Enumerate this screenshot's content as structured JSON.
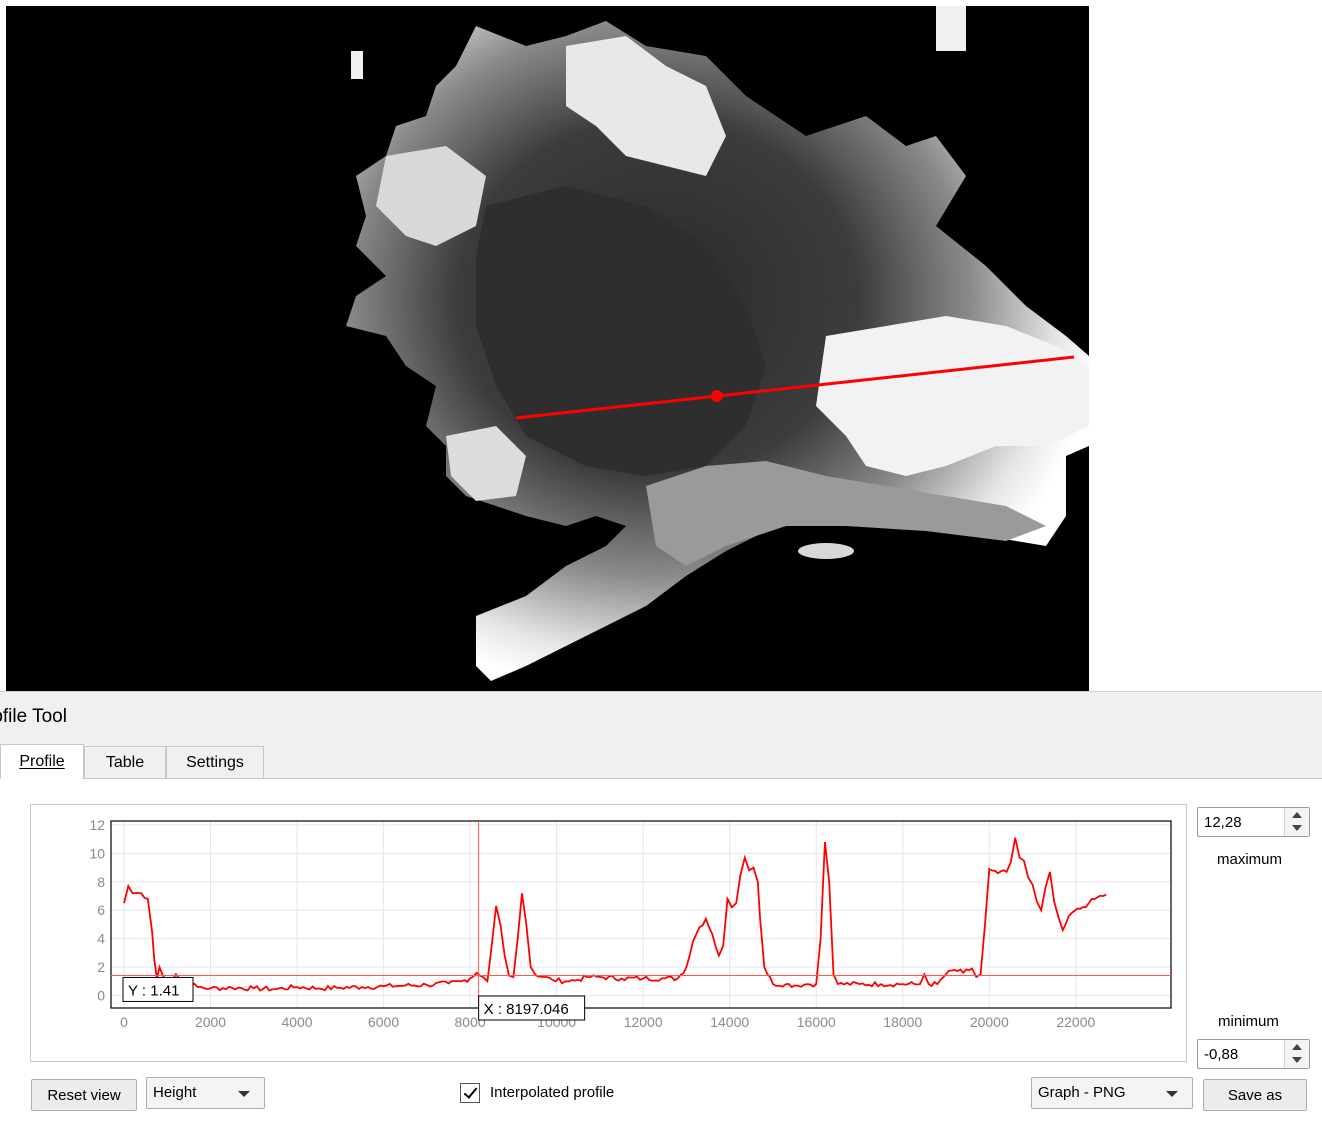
{
  "dock": {
    "title": "rofile Tool",
    "tabs": [
      {
        "label": "Profile",
        "active": true
      },
      {
        "label": "Table",
        "active": false
      },
      {
        "label": "Settings",
        "active": false
      }
    ]
  },
  "controls": {
    "maximum_value": "12,28",
    "maximum_label": "maximum",
    "minimum_value": "-0,88",
    "minimum_label": "minimum",
    "reset_view_label": "Reset view",
    "height_select": "Height",
    "interpolated_label": "Interpolated profile",
    "interpolated_checked": true,
    "format_select": "Graph - PNG",
    "save_as_label": "Save as"
  },
  "map": {
    "profile_line_color": "#ff0000"
  },
  "chart_data": {
    "type": "line",
    "title": "",
    "xlabel": "",
    "ylabel": "",
    "xlim": [
      -300,
      24200
    ],
    "ylim": [
      -0.88,
      12.28
    ],
    "x_ticks": [
      "0",
      "2000",
      "4000",
      "6000",
      "8000",
      "10000",
      "12000",
      "14000",
      "16000",
      "18000",
      "20000",
      "22000"
    ],
    "x_tick_values": [
      0,
      2000,
      4000,
      6000,
      8000,
      10000,
      12000,
      14000,
      16000,
      18000,
      20000,
      22000
    ],
    "y_ticks": [
      "0",
      "2",
      "4",
      "6",
      "8",
      "10",
      "12"
    ],
    "y_tick_values": [
      0,
      2,
      4,
      6,
      8,
      10,
      12
    ],
    "grid": true,
    "line_color": "#ff0000",
    "cursor": {
      "x": 8197.046,
      "y": 1.41,
      "x_label": "X : 8197.046",
      "y_label": "Y : 1.41"
    },
    "series": [
      {
        "x": [
          0,
          100,
          200,
          400,
          550,
          650,
          700,
          760,
          820,
          900,
          1000,
          1100,
          1200,
          1400,
          1700,
          2000,
          2500,
          3000,
          3500,
          4000,
          4500,
          5000,
          5500,
          6000,
          6500,
          7000,
          7500,
          7800,
          8000,
          8150,
          8300,
          8400,
          8500,
          8600,
          8700,
          8800,
          8900,
          9000,
          9100,
          9200,
          9300,
          9400,
          9500,
          9700,
          9900,
          10200,
          10500,
          10700,
          11000,
          11500,
          12000,
          12500,
          12800,
          13000,
          13150,
          13300,
          13450,
          13600,
          13750,
          13850,
          13950,
          14050,
          14150,
          14250,
          14350,
          14450,
          14550,
          14650,
          14700,
          14800,
          15000,
          15300,
          15500,
          15800,
          16000,
          16100,
          16200,
          16300,
          16400,
          16500,
          17000,
          17500,
          18000,
          18400,
          18500,
          18600,
          18800,
          19000,
          19200,
          19400,
          19600,
          19700,
          19800,
          19900,
          20000,
          20200,
          20400,
          20500,
          20600,
          20700,
          20800,
          20900,
          21000,
          21100,
          21200,
          21300,
          21400,
          21500,
          21600,
          21700,
          21900,
          22100,
          22300,
          22500,
          22700
        ],
        "y": [
          6.5,
          7.7,
          7.2,
          7.2,
          6.8,
          4.5,
          2.5,
          1.2,
          2.0,
          1.4,
          0.9,
          1.0,
          1.5,
          1.0,
          0.6,
          0.5,
          0.55,
          0.5,
          0.45,
          0.6,
          0.5,
          0.55,
          0.6,
          0.65,
          0.7,
          0.75,
          0.85,
          1.0,
          1.2,
          1.6,
          1.3,
          1.0,
          3.5,
          6.3,
          5.0,
          2.8,
          1.4,
          1.3,
          4.0,
          7.2,
          5.0,
          2.0,
          1.5,
          1.3,
          1.1,
          1.0,
          1.1,
          1.3,
          1.3,
          1.2,
          1.2,
          1.2,
          1.2,
          2.0,
          3.8,
          4.8,
          5.4,
          4.3,
          2.8,
          3.5,
          6.8,
          6.2,
          6.5,
          8.5,
          9.7,
          8.8,
          9.0,
          8.0,
          5.5,
          2.0,
          0.8,
          0.8,
          0.7,
          0.8,
          0.8,
          4.0,
          10.8,
          8.0,
          1.5,
          0.8,
          0.8,
          0.8,
          0.8,
          0.8,
          1.5,
          0.8,
          0.8,
          1.5,
          1.8,
          1.6,
          1.9,
          1.3,
          1.5,
          5.0,
          8.9,
          8.6,
          8.7,
          9.4,
          11.1,
          9.7,
          9.5,
          8.3,
          7.8,
          6.6,
          6.0,
          7.6,
          8.7,
          6.6,
          5.5,
          4.6,
          5.8,
          6.1,
          6.5,
          6.9,
          7.1
        ]
      }
    ]
  }
}
